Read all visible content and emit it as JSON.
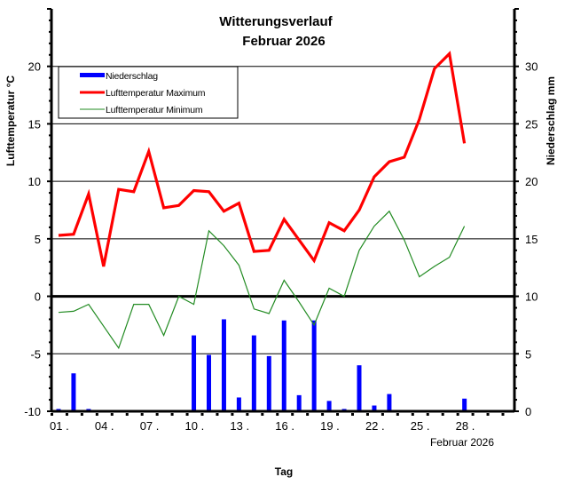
{
  "chart_data": {
    "type": "bar+line",
    "title": "Witterungsverlauf",
    "subtitle": "Februar 2026",
    "xlabel": "Tag",
    "x_caption": "Februar  2026",
    "ylabel_left": "Lufttemperatur °C",
    "ylabel_right": "Niederschlag  mm",
    "ylim_left": [
      -10,
      25
    ],
    "ylim_right": [
      0,
      35
    ],
    "yticks_left": [
      -10,
      -5,
      0,
      5,
      10,
      15,
      20
    ],
    "yticks_right": [
      0,
      5,
      10,
      15,
      20,
      25,
      30
    ],
    "xtick_labels": [
      "01 .",
      "04 .",
      "07 .",
      "10 .",
      "13 .",
      "16 .",
      "19 .",
      "22 .",
      "25 .",
      "28 ."
    ],
    "xtick_days": [
      1,
      4,
      7,
      10,
      13,
      16,
      19,
      22,
      25,
      28
    ],
    "grid": "horizontal at major ticks",
    "legend_position": "upper-left",
    "x": [
      1,
      2,
      3,
      4,
      5,
      6,
      7,
      8,
      9,
      10,
      11,
      12,
      13,
      14,
      15,
      16,
      17,
      18,
      19,
      20,
      21,
      22,
      23,
      24,
      25,
      26,
      27,
      28
    ],
    "series": [
      {
        "name": "Niederschlag",
        "type": "bar",
        "axis": "right",
        "color": "#0000ff",
        "values": [
          0.2,
          3.3,
          0.2,
          0,
          0,
          0,
          0,
          0,
          0,
          6.6,
          4.9,
          8.0,
          1.2,
          6.6,
          4.8,
          7.9,
          1.4,
          7.9,
          0.9,
          0.2,
          4.0,
          0.5,
          1.5,
          0.1,
          0,
          0,
          0,
          1.1
        ]
      },
      {
        "name": "Lufttemperatur Maximum",
        "type": "line",
        "axis": "left",
        "color": "#ff0000",
        "values": [
          5.3,
          5.4,
          8.9,
          2.6,
          9.3,
          9.1,
          12.6,
          7.7,
          7.9,
          9.2,
          9.1,
          7.4,
          8.1,
          3.9,
          4.0,
          6.7,
          4.9,
          3.1,
          6.4,
          5.7,
          7.5,
          10.4,
          11.7,
          12.1,
          15.4,
          19.8,
          21.1,
          13.3
        ]
      },
      {
        "name": "Lufttemperatur Minimum",
        "type": "line",
        "axis": "left",
        "color": "#228b22",
        "values": [
          -1.4,
          -1.3,
          -0.7,
          -2.6,
          -4.5,
          -0.7,
          -0.7,
          -3.4,
          0.0,
          -0.7,
          5.7,
          4.4,
          2.7,
          -1.1,
          -1.5,
          1.4,
          -0.5,
          -2.5,
          0.7,
          0.0,
          4.0,
          6.1,
          7.4,
          4.9,
          1.7,
          2.6,
          3.4,
          6.1
        ]
      }
    ]
  },
  "legend": {
    "items": [
      {
        "label": "Niederschlag",
        "color": "#0000ff"
      },
      {
        "label": "Lufttemperatur Maximum",
        "color": "#ff0000"
      },
      {
        "label": "Lufttemperatur Minimum",
        "color": "#228b22"
      }
    ]
  }
}
